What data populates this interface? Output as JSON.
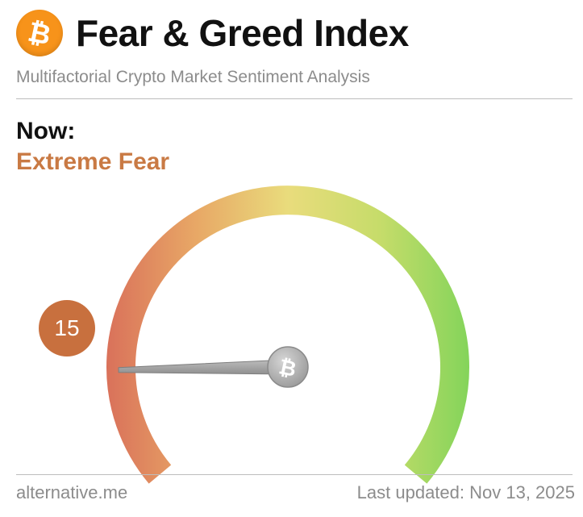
{
  "header": {
    "logo_icon": "bitcoin-logo-icon",
    "title": "Fear & Greed Index",
    "subtitle": "Multifactorial Crypto Market Sentiment Analysis"
  },
  "status": {
    "now_label": "Now:",
    "sentiment": "Extreme Fear",
    "sentiment_color": "#c97a44"
  },
  "gauge": {
    "value": "15",
    "value_numeric": 15,
    "scale_min": 0,
    "scale_max": 100,
    "needle_hub_icon": "bitcoin-icon",
    "gradient_colors": [
      "#d9705a",
      "#e8a866",
      "#e9d97a",
      "#8bd65c"
    ],
    "value_badge_color": "#c8703e"
  },
  "footer": {
    "source": "alternative.me",
    "last_updated": "Last updated: Nov 13, 2025"
  }
}
